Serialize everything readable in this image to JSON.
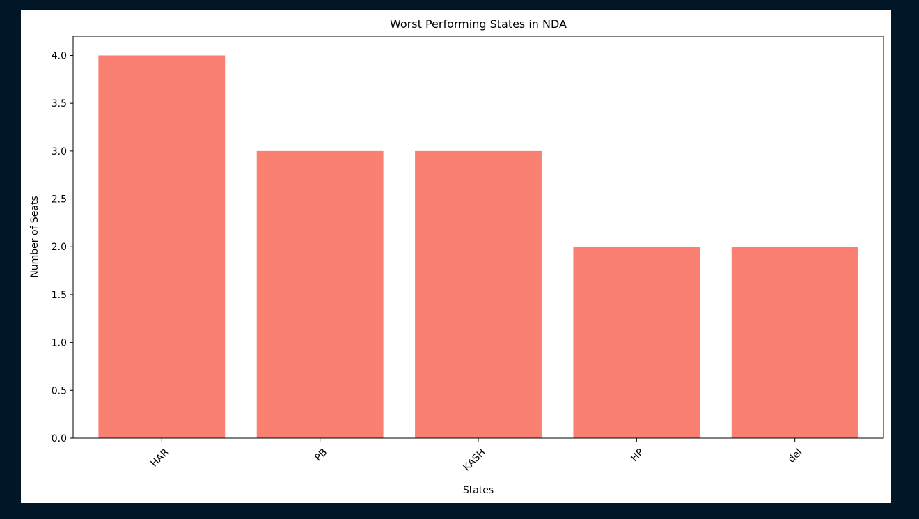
{
  "page": {
    "background": "#011627",
    "figure_background": "#ffffff"
  },
  "chart_data": {
    "type": "bar",
    "title": "Worst Performing States in NDA",
    "xlabel": "States",
    "ylabel": "Number of Seats",
    "categories": [
      "HAR",
      "PB",
      "KASH",
      "HP",
      "del"
    ],
    "values": [
      4,
      3,
      3,
      2,
      2
    ],
    "ylim": [
      0,
      4.2
    ],
    "yticks": [
      0.0,
      0.5,
      1.0,
      1.5,
      2.0,
      2.5,
      3.0,
      3.5,
      4.0
    ],
    "ytick_labels": [
      "0.0",
      "0.5",
      "1.0",
      "1.5",
      "2.0",
      "2.5",
      "3.0",
      "3.5",
      "4.0"
    ],
    "xtick_rotation_deg": 45,
    "bar_color": "#fa8072",
    "grid": false,
    "legend": "none"
  }
}
